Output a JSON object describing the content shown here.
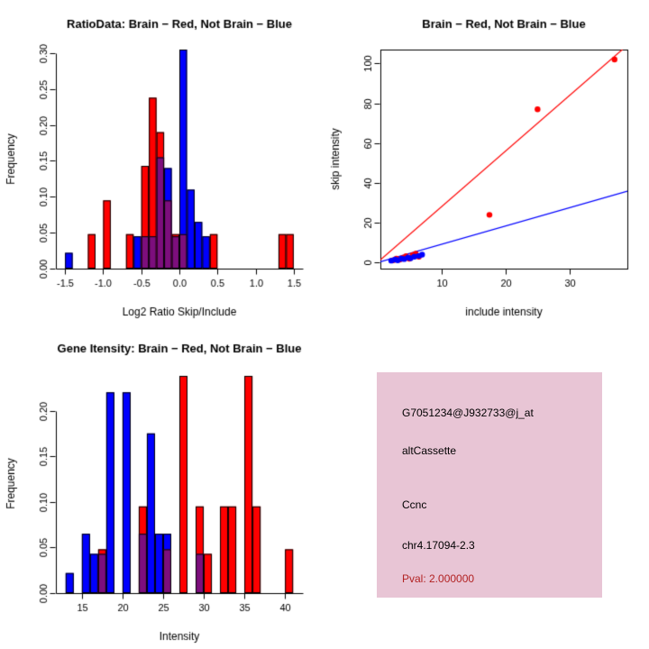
{
  "colors": {
    "red": "#FF0000",
    "blue": "#0000FF",
    "overlap": "#7D0E7D",
    "axis": "#000000",
    "background": "#FFFFFF"
  },
  "chart_data": [
    {
      "id": "ratio_hist",
      "type": "bar",
      "title": "RatioData: Brain − Red, Not Brain − Blue",
      "xlabel": "Log2 Ratio Skip/Include",
      "ylabel": "Frequency",
      "xlim": [
        -1.62,
        1.62
      ],
      "ylim": [
        0,
        0.305
      ],
      "bin_start": -1.5,
      "bin_width": 0.1,
      "xticks": {
        "values": [
          -1.5,
          -1.0,
          -0.5,
          0.0,
          0.5,
          1.0,
          1.5
        ],
        "labels": [
          "-1.5",
          "-1.0",
          "-0.5",
          "0.0",
          "0.5",
          "1.0",
          "1.5"
        ]
      },
      "yticks": {
        "values": [
          0,
          0.05,
          0.1,
          0.15,
          0.2,
          0.25,
          0.3
        ],
        "labels": [
          "0.00",
          "0.05",
          "0.10",
          "0.15",
          "0.20",
          "0.25",
          "0.30"
        ]
      },
      "series": [
        {
          "name": "Brain (Red)",
          "color": "#FF0000",
          "values": [
            0,
            0,
            0,
            0.048,
            0,
            0.095,
            0,
            0,
            0.048,
            0,
            0.143,
            0.238,
            0.19,
            0.095,
            0.048,
            0.048,
            0,
            0,
            0,
            0.048,
            0,
            0,
            0,
            0,
            0,
            0,
            0,
            0,
            0.048,
            0.048
          ]
        },
        {
          "name": "Not Brain (Blue)",
          "color": "#0000FF",
          "values": [
            0.022,
            0,
            0,
            0,
            0,
            0,
            0,
            0,
            0,
            0.045,
            0.045,
            0.045,
            0.155,
            0.14,
            0.045,
            0.305,
            0.11,
            0.065,
            0.045,
            0,
            0,
            0,
            0,
            0,
            0,
            0,
            0,
            0,
            0,
            0
          ]
        }
      ]
    },
    {
      "id": "scatter",
      "type": "scatter",
      "title": "Brain − Red, Not Brain − Blue",
      "xlabel": "include intensity",
      "ylabel": "skip intensity",
      "xlim": [
        0.5,
        39
      ],
      "ylim": [
        -3,
        107
      ],
      "xticks": {
        "values": [
          10,
          20,
          30
        ],
        "labels": [
          "10",
          "20",
          "30"
        ]
      },
      "yticks": {
        "values": [
          0,
          20,
          40,
          60,
          80,
          100
        ],
        "labels": [
          "0",
          "20",
          "40",
          "60",
          "80",
          "100"
        ]
      },
      "series": [
        {
          "name": "Brain (Red)",
          "color": "#FF0000",
          "points": [
            [
              2.5,
              1.2
            ],
            [
              3,
              2
            ],
            [
              3.5,
              1.5
            ],
            [
              4,
              2.5
            ],
            [
              4.5,
              3.2
            ],
            [
              5,
              2
            ],
            [
              5.5,
              3.8
            ],
            [
              6,
              4.5
            ],
            [
              6.5,
              3
            ],
            [
              17.5,
              24
            ],
            [
              25,
              77
            ],
            [
              37,
              102
            ]
          ],
          "line": {
            "slope": 2.8,
            "intercept": 0
          }
        },
        {
          "name": "Not Brain (Blue)",
          "color": "#0000FF",
          "points": [
            [
              2.2,
              1
            ],
            [
              2.8,
              1.5
            ],
            [
              3.2,
              1.2
            ],
            [
              3.8,
              2
            ],
            [
              4.2,
              1.8
            ],
            [
              4.8,
              2.6
            ],
            [
              5.2,
              2.2
            ],
            [
              5.8,
              3
            ],
            [
              6.5,
              3.4
            ],
            [
              7,
              4
            ]
          ],
          "line": {
            "slope": 0.92,
            "intercept": 0
          }
        }
      ]
    },
    {
      "id": "gene_hist",
      "type": "bar",
      "title": "Gene Itensity: Brain − Red, Not Brain − Blue",
      "xlabel": "Intensity",
      "ylabel": "Frequency",
      "xlim": [
        11.8,
        42.2
      ],
      "ylim": [
        0,
        0.24
      ],
      "bin_start": 13,
      "bin_width": 1,
      "xticks": {
        "values": [
          15,
          20,
          25,
          30,
          35,
          40
        ],
        "labels": [
          "15",
          "20",
          "25",
          "30",
          "35",
          "40"
        ]
      },
      "yticks": {
        "values": [
          0,
          0.05,
          0.1,
          0.15,
          0.2
        ],
        "labels": [
          "0.00",
          "0.05",
          "0.10",
          "0.15",
          "0.20"
        ]
      },
      "series": [
        {
          "name": "Brain (Red)",
          "color": "#FF0000",
          "values": [
            0,
            0,
            0,
            0,
            0.048,
            0,
            0,
            0,
            0,
            0.095,
            0,
            0,
            0.048,
            0,
            0.238,
            0,
            0.095,
            0.043,
            0,
            0.095,
            0.095,
            0,
            0.238,
            0.095,
            0,
            0,
            0,
            0.048
          ]
        },
        {
          "name": "Not Brain (Blue)",
          "color": "#0000FF",
          "values": [
            0.022,
            0,
            0.065,
            0.043,
            0.043,
            0.22,
            0,
            0.22,
            0,
            0.065,
            0.175,
            0.065,
            0.065,
            0,
            0,
            0,
            0.043,
            0,
            0,
            0,
            0,
            0,
            0,
            0,
            0,
            0,
            0,
            0
          ]
        }
      ]
    }
  ],
  "info_panel": {
    "background": "#E8C5D5",
    "lines": [
      {
        "text": "G7051234@J932733@j_at",
        "color": "#000000"
      },
      {
        "text": "altCassette",
        "color": "#000000"
      },
      {
        "text": "Ccnc",
        "color": "#000000"
      },
      {
        "text": "chr4.17094-2.3",
        "color": "#000000"
      },
      {
        "text": "Pval: 2.000000",
        "color": "#B22222"
      }
    ]
  }
}
